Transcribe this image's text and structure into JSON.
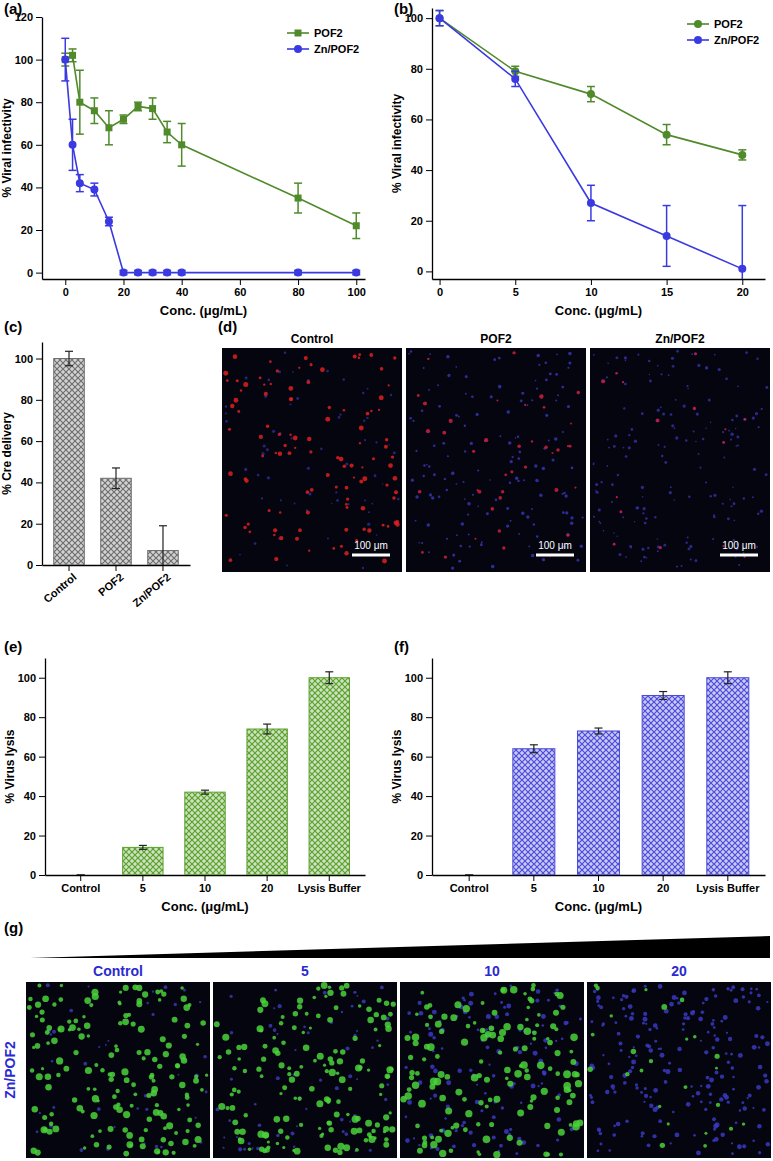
{
  "chart_data": [
    {
      "type": "line",
      "title": "(a)",
      "x_label": "Conc. (μg/mL)",
      "y_label": "% Viral infectivity",
      "x": [
        0,
        2.5,
        5,
        10,
        15,
        20,
        25,
        30,
        35,
        40,
        80,
        100
      ],
      "series": [
        {
          "name": "POF2",
          "color": "#4f8a2b",
          "marker": "square",
          "values": [
            100,
            102,
            80,
            76,
            68,
            72,
            78,
            77,
            66,
            60,
            35,
            22
          ],
          "errors": [
            3,
            3,
            15,
            6,
            8,
            2,
            2,
            5,
            5,
            10,
            7,
            6
          ]
        },
        {
          "name": "Zn/POF2",
          "color": "#3a3ae0",
          "marker": "circle",
          "values": [
            100,
            60,
            42,
            39,
            24,
            0,
            0,
            0,
            0,
            0,
            0,
            0
          ],
          "errors": [
            10,
            12,
            4,
            3,
            2,
            1,
            1,
            1,
            1,
            1,
            1,
            1
          ]
        }
      ],
      "xlim": [
        -8,
        103
      ],
      "ylim": [
        -3,
        120
      ],
      "xticks": [
        0,
        20,
        40,
        60,
        80,
        100
      ],
      "yticks": [
        0,
        20,
        40,
        60,
        80,
        100,
        120
      ],
      "legend": "upper right"
    },
    {
      "type": "line",
      "title": "(b)",
      "x_label": "Conc. (μg/mL)",
      "y_label": "% Viral infectivity",
      "x": [
        0,
        5,
        10,
        15,
        20
      ],
      "series": [
        {
          "name": "POF2",
          "color": "#4f8a2b",
          "marker": "circle",
          "values": [
            100,
            79,
            70,
            54,
            46
          ],
          "errors": [
            3,
            2,
            3,
            4,
            2
          ]
        },
        {
          "name": "Zn/POF2",
          "color": "#3a3ae0",
          "marker": "circle",
          "values": [
            100,
            76,
            27,
            14,
            1
          ],
          "errors": [
            3,
            3,
            7,
            12,
            25
          ]
        }
      ],
      "xlim": [
        -0.5,
        21.5
      ],
      "ylim": [
        -3,
        104
      ],
      "xticks": [
        0,
        5,
        10,
        15,
        20
      ],
      "yticks": [
        0,
        20,
        40,
        60,
        80,
        100
      ],
      "legend": "upper right"
    },
    {
      "type": "bar",
      "title": "(c)",
      "y_label": "% Cre delivery",
      "categories": [
        "Control",
        "POF2",
        "Zn/POF2"
      ],
      "values": [
        100,
        42,
        7
      ],
      "errors": [
        3.5,
        5,
        12
      ],
      "color": "#6e6e6e",
      "ylim": [
        0,
        108
      ],
      "yticks": [
        0,
        20,
        40,
        60,
        80,
        100
      ]
    },
    {
      "type": "bar",
      "title": "(e)",
      "x_label": "Conc. (μg/mL)",
      "y_label": "% Virus lysis",
      "categories": [
        "Control",
        "5",
        "10",
        "20",
        "Lysis Buffer"
      ],
      "values": [
        0,
        14,
        42,
        74,
        100
      ],
      "errors": [
        0,
        1,
        1,
        2.5,
        3
      ],
      "color": "#5aa02c",
      "ylim": [
        0,
        110
      ],
      "yticks": [
        0,
        20,
        40,
        60,
        80,
        100
      ]
    },
    {
      "type": "bar",
      "title": "(f)",
      "x_label": "Conc. (μg/mL)",
      "y_label": "% Virus lysis",
      "categories": [
        "Control",
        "5",
        "10",
        "20",
        "Lysis Buffer"
      ],
      "values": [
        0,
        64,
        73,
        91,
        100
      ],
      "errors": [
        0,
        2,
        1.5,
        2,
        3
      ],
      "color": "#4b4bd8",
      "ylim": [
        0,
        110
      ],
      "yticks": [
        0,
        20,
        40,
        60,
        80,
        100
      ]
    }
  ],
  "image_panels": [
    {
      "label": "(d)",
      "titles": [
        "Control",
        "POF2",
        "Zn/POF2"
      ],
      "scale_bar": "100 μm"
    },
    {
      "label": "(g)",
      "row_label": "Zn/POF2",
      "titles": [
        "Control",
        "5",
        "10",
        "20"
      ]
    }
  ]
}
